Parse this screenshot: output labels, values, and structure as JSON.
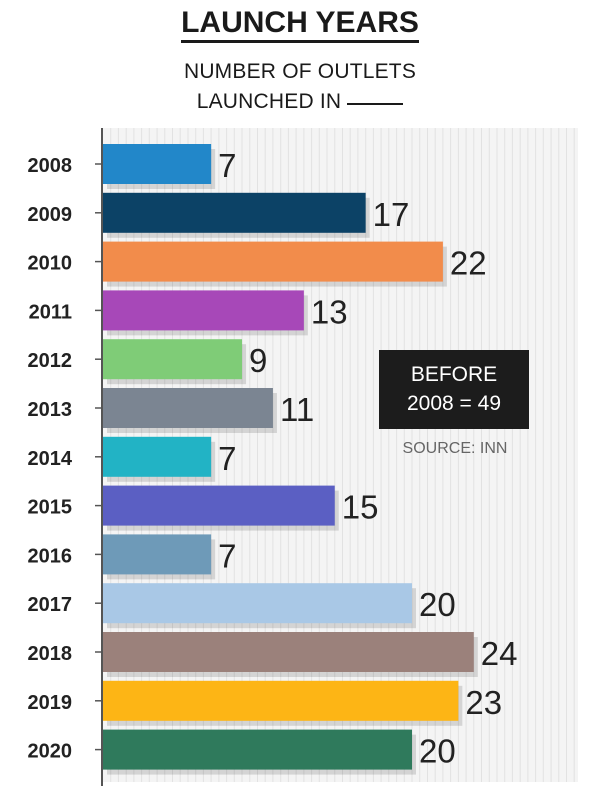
{
  "header": {
    "title": "LAUNCH YEARS",
    "subtitle_line1": "NUMBER OF OUTLETS",
    "subtitle_line2": "LAUNCHED IN"
  },
  "note": {
    "line1": "BEFORE",
    "line2": "2008 = 49"
  },
  "source": "SOURCE: INN",
  "chart_data": {
    "type": "bar",
    "orientation": "horizontal",
    "title": "LAUNCH YEARS",
    "subtitle": "NUMBER OF OUTLETS LAUNCHED IN ____",
    "xlabel": "",
    "ylabel": "",
    "xlim": [
      0,
      25
    ],
    "grid": true,
    "legend": "none",
    "categories": [
      "2008",
      "2009",
      "2010",
      "2011",
      "2012",
      "2013",
      "2014",
      "2015",
      "2016",
      "2017",
      "2018",
      "2019",
      "2020"
    ],
    "values": [
      7,
      17,
      22,
      13,
      9,
      11,
      7,
      15,
      7,
      20,
      24,
      23,
      20
    ],
    "colors": [
      "#2287c9",
      "#0c4266",
      "#f28c4b",
      "#a748b8",
      "#7fcc77",
      "#7b8592",
      "#22b3c5",
      "#5b5fc3",
      "#6e9ab8",
      "#a9c8e6",
      "#9b817b",
      "#fdb515",
      "#2f7a5c"
    ],
    "annotations": [
      "BEFORE 2008 = 49",
      "SOURCE: INN"
    ]
  }
}
